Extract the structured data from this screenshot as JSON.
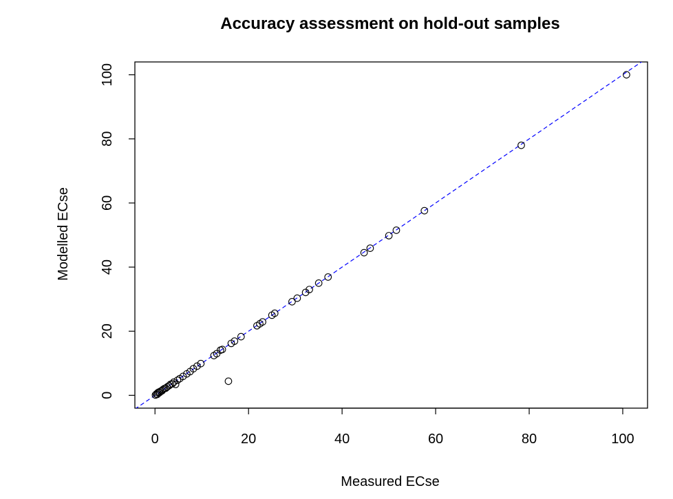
{
  "chart_data": {
    "type": "scatter",
    "title": "Accuracy assessment on hold-out samples",
    "xlabel": "Measured ECse",
    "ylabel": "Modelled ECse",
    "xlim": [
      -4.3,
      105.3
    ],
    "ylim": [
      -4.0,
      104.0
    ],
    "x_ticks": [
      0,
      20,
      40,
      60,
      80,
      100
    ],
    "y_ticks": [
      0,
      20,
      40,
      60,
      80,
      100
    ],
    "grid": false,
    "marker": "open-circle",
    "reference_line": {
      "slope": 1,
      "intercept": 0,
      "style": "dashed",
      "color": "#0000ff"
    },
    "points": [
      [
        0.1,
        0.1
      ],
      [
        0.3,
        0.4
      ],
      [
        0.5,
        0.3
      ],
      [
        0.6,
        0.8
      ],
      [
        0.8,
        1.0
      ],
      [
        1.0,
        0.9
      ],
      [
        1.2,
        1.3
      ],
      [
        1.5,
        1.4
      ],
      [
        1.7,
        1.8
      ],
      [
        2.0,
        2.1
      ],
      [
        2.3,
        2.2
      ],
      [
        2.6,
        2.6
      ],
      [
        3.0,
        3.0
      ],
      [
        3.3,
        3.4
      ],
      [
        3.7,
        3.6
      ],
      [
        4.0,
        4.1
      ],
      [
        4.4,
        3.4
      ],
      [
        4.8,
        4.7
      ],
      [
        5.3,
        5.2
      ],
      [
        6.0,
        5.9
      ],
      [
        6.8,
        6.7
      ],
      [
        7.5,
        7.4
      ],
      [
        8.2,
        8.3
      ],
      [
        9.0,
        9.1
      ],
      [
        9.8,
        9.9
      ],
      [
        12.6,
        12.4
      ],
      [
        13.2,
        13.0
      ],
      [
        14.0,
        14.1
      ],
      [
        14.4,
        14.3
      ],
      [
        15.7,
        4.4
      ],
      [
        16.3,
        16.2
      ],
      [
        17.0,
        16.9
      ],
      [
        18.4,
        18.3
      ],
      [
        21.8,
        21.7
      ],
      [
        22.4,
        22.3
      ],
      [
        23.0,
        22.9
      ],
      [
        25.0,
        25.0
      ],
      [
        25.6,
        25.6
      ],
      [
        29.3,
        29.2
      ],
      [
        30.4,
        30.3
      ],
      [
        32.2,
        32.1
      ],
      [
        33.0,
        33.0
      ],
      [
        35.0,
        35.0
      ],
      [
        37.0,
        36.9
      ],
      [
        44.7,
        44.5
      ],
      [
        46.0,
        45.9
      ],
      [
        50.0,
        49.8
      ],
      [
        51.6,
        51.5
      ],
      [
        57.6,
        57.6
      ],
      [
        78.3,
        78.0
      ],
      [
        100.8,
        100.0
      ]
    ]
  }
}
